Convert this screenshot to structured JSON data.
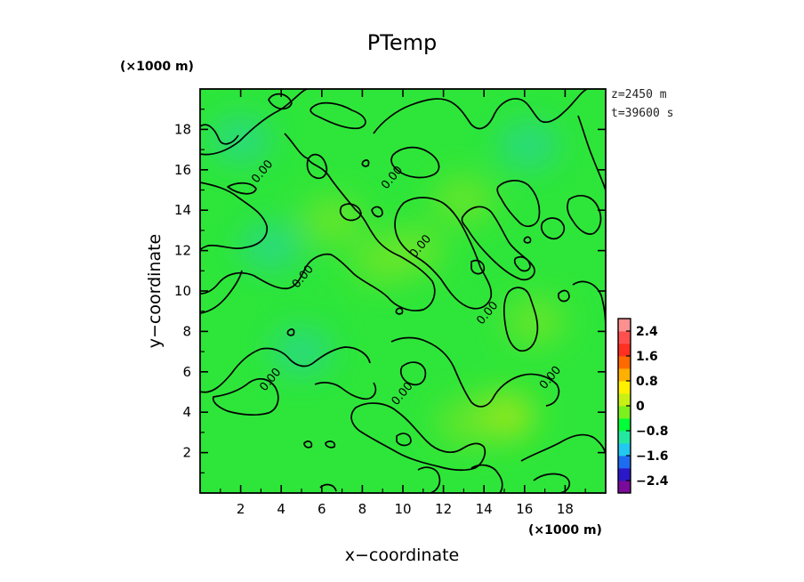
{
  "chart_data": {
    "type": "heatmap",
    "title": "PTemp",
    "xlabel": "x−coordinate",
    "ylabel": "y−coordinate",
    "x_unit": "(×1000 m)",
    "y_unit": "(×1000 m)",
    "xlim": [
      0,
      20
    ],
    "ylim": [
      0,
      20
    ],
    "x_ticks": [
      "2",
      "4",
      "6",
      "8",
      "10",
      "12",
      "14",
      "16",
      "18"
    ],
    "y_ticks": [
      "2",
      "4",
      "6",
      "8",
      "10",
      "12",
      "14",
      "16",
      "18"
    ],
    "info": [
      "z=2450  m",
      "t=39600  s"
    ],
    "contour_level": "0.00",
    "contour_labels": [
      {
        "x": 3.2,
        "y": 15.8
      },
      {
        "x": 9.6,
        "y": 15.5
      },
      {
        "x": 11.0,
        "y": 12.1
      },
      {
        "x": 5.2,
        "y": 10.6
      },
      {
        "x": 14.3,
        "y": 8.8
      },
      {
        "x": 3.6,
        "y": 5.5
      },
      {
        "x": 10.1,
        "y": 4.8
      },
      {
        "x": 17.4,
        "y": 5.6
      }
    ],
    "field_blobs": [
      {
        "x": 15.0,
        "y": 3.8,
        "v": 0.55
      },
      {
        "x": 13.2,
        "y": 3.5,
        "v": 0.35
      },
      {
        "x": 9.0,
        "y": 11.5,
        "v": 0.4
      },
      {
        "x": 10.5,
        "y": 12.0,
        "v": 0.3
      },
      {
        "x": 6.5,
        "y": 13.5,
        "v": 0.25
      },
      {
        "x": 13.0,
        "y": 14.5,
        "v": 0.25
      },
      {
        "x": 16.5,
        "y": 8.5,
        "v": 0.25
      },
      {
        "x": 5.0,
        "y": 7.0,
        "v": -0.25
      },
      {
        "x": 2.0,
        "y": 17.5,
        "v": -0.22
      },
      {
        "x": 16.2,
        "y": 17.2,
        "v": -0.28
      },
      {
        "x": 3.5,
        "y": 12.2,
        "v": -0.2
      }
    ],
    "colorbar": {
      "ticks": [
        "2.4",
        "1.6",
        "0.8",
        "0",
        "−0.8",
        "−1.6",
        "−2.4"
      ],
      "range": [
        -2.8,
        2.8
      ],
      "colors": [
        "#7a0a9a",
        "#2a18c8",
        "#1e6cf0",
        "#22c8f0",
        "#24e8a0",
        "#00ff38",
        "#7cf01c",
        "#c8f014",
        "#fff000",
        "#ffb000",
        "#ff6a00",
        "#ff3020",
        "#ff5050",
        "#ff9090"
      ]
    }
  }
}
